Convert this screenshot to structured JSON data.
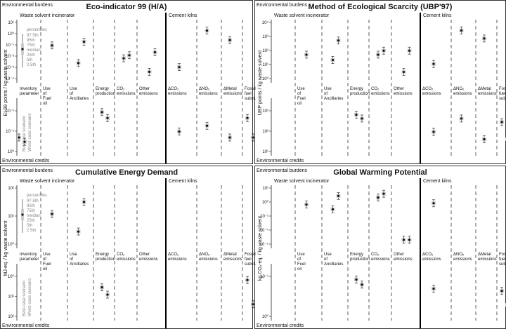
{
  "chart_data": [
    {
      "type": "scatter",
      "title": "Eco-indicator 99 (H/A)",
      "ylabel": "EI-99 points / kg waste solvent",
      "upper_ticks": [
        "10¹",
        "10⁰",
        "10⁻¹",
        "10⁻²",
        "10⁻³",
        "10⁻⁴"
      ],
      "lower_ticks": [
        "10⁻²",
        "10⁻¹",
        "10⁰"
      ],
      "upper_label": "Environmental burdens",
      "lower_label": "Environmental credits",
      "section_left": "Waste solvent incinerator",
      "section_right": "Cement kilns",
      "legend_title": "percentiles",
      "legend_items": [
        "97.5th",
        "95th",
        "75th",
        "median",
        "25th",
        "5th",
        "2.5th"
      ],
      "scenario_labels": [
        "Best-case scenario",
        "Worst-case scenario"
      ],
      "categories": [
        "Inventory parameter",
        "Use of Fuel oil",
        "Use of Ancillaries",
        "Energy production",
        "CO₂ emissions",
        "Other emissions",
        "ΔCO₂ emissions",
        "ΔNOₓ emissions",
        "ΔMetal emissions",
        "Fossil fuel subst."
      ],
      "burdens": {
        "best": [
          null,
          0.08,
          0.004,
          null,
          0.009,
          0.0009,
          0.002,
          1.0,
          0.2,
          null
        ],
        "worst": [
          null,
          null,
          0.15,
          null,
          0.015,
          0.025,
          null,
          null,
          null,
          null
        ]
      },
      "credits": {
        "best": [
          0.01,
          null,
          null,
          0.2,
          null,
          null,
          0.02,
          0.04,
          0.01,
          0.1
        ],
        "worst": [
          0.006,
          null,
          null,
          0.1,
          null,
          null,
          null,
          null,
          null,
          0.01
        ]
      }
    },
    {
      "type": "scatter",
      "title": "Method of Ecological Scarcity (UBP'97)",
      "ylabel": "UBP points / kg waste solvent",
      "upper_ticks": [
        "10⁴",
        "10³",
        "10²",
        "10¹",
        "10⁰"
      ],
      "lower_ticks": [
        "10³",
        "10²",
        "10¹"
      ],
      "upper_label": "Environmental burdens",
      "lower_label": "Environmental credits",
      "section_left": "Waste solvent incinerator",
      "section_right": "Cement kilns",
      "categories": [
        "Inventory parameter",
        "Use of Fuel oil",
        "Use of Ancillaries",
        "Energy production",
        "CO₂ emissions",
        "Other emissions",
        "ΔCO₂ emissions",
        "ΔNOₓ emissions",
        "ΔMetal emissions",
        "Fossil fuel subst."
      ],
      "burdens": {
        "best": [
          null,
          30,
          12,
          null,
          30,
          1.5,
          6,
          2000,
          500,
          null
        ],
        "worst": [
          null,
          null,
          350,
          null,
          60,
          60,
          null,
          null,
          null,
          null
        ]
      },
      "credits": {
        "best": [
          null,
          null,
          null,
          1000,
          null,
          null,
          200,
          700,
          100,
          500
        ],
        "worst": [
          null,
          null,
          null,
          700,
          null,
          null,
          null,
          null,
          null,
          100
        ]
      }
    },
    {
      "type": "scatter",
      "title": "Cumulative Energy Demand",
      "ylabel": "MJ-eq. / kg waste solvent",
      "upper_ticks": [
        "10²",
        "10¹",
        "10⁰"
      ],
      "lower_ticks": [
        "10⁰",
        "10¹",
        "10²"
      ],
      "upper_label": "Environmental burdens",
      "lower_label": "Environmental credits",
      "section_left": "Waste solvent incinerator",
      "section_right": "Cement kilns",
      "legend_title": "percentiles",
      "legend_items": [
        "97.5th",
        "95th",
        "75th",
        "median",
        "25th",
        "5th",
        "2.5th"
      ],
      "scenario_labels": [
        "Best-case scenario",
        "Worst-case scenario"
      ],
      "categories": [
        "Inventory parameter",
        "Use of Fuel oil",
        "Use of Ancillaries",
        "Energy production",
        "CO₂ emissions",
        "Other emissions",
        "ΔCO₂ emissions",
        "ΔNOₓ emissions",
        "ΔMetal emissions",
        "Fossil fuel subst."
      ],
      "burdens": {
        "best": [
          null,
          20,
          4,
          null,
          null,
          null,
          null,
          null,
          null,
          null
        ],
        "worst": [
          null,
          null,
          60,
          null,
          null,
          null,
          null,
          null,
          null,
          null
        ]
      },
      "credits": {
        "best": [
          null,
          null,
          null,
          50,
          null,
          null,
          null,
          null,
          null,
          100
        ],
        "worst": [
          null,
          null,
          null,
          25,
          null,
          null,
          null,
          null,
          null,
          10
        ]
      }
    },
    {
      "type": "scatter",
      "title": "Global Warming Potential",
      "ylabel": "kg CO₂-eq. / kg waste solvent",
      "upper_ticks": [
        "10¹",
        "10⁰",
        "10⁻¹",
        "10⁻⁴",
        "10⁻⁵"
      ],
      "lower_ticks": [
        "10⁻¹",
        "10⁰"
      ],
      "upper_label": "Environmental burdens",
      "lower_label": "Environmental credits",
      "section_left": "Waste solvent incinerator",
      "section_right": "Cement kilns",
      "categories": [
        "Inventory parameter",
        "Use of Fuel oil",
        "Use of Ancillaries",
        "Energy production",
        "CO₂ emissions",
        "Other emissions",
        "ΔCO₂ emissions",
        "ΔNOₓ emissions",
        "ΔMetal emissions",
        "Fossil fuel subst."
      ],
      "burdens": {
        "best": [
          null,
          0.25,
          0.07,
          null,
          1.6,
          2e-05,
          0.35,
          null,
          null,
          null
        ],
        "worst": [
          null,
          null,
          2.5,
          null,
          4.5,
          2e-05,
          null,
          null,
          null,
          null
        ]
      },
      "credits": {
        "best": [
          null,
          null,
          null,
          2.5,
          null,
          null,
          1.0,
          null,
          null,
          0.8
        ],
        "worst": [
          null,
          null,
          null,
          1.5,
          null,
          null,
          null,
          null,
          null,
          0.2
        ]
      }
    }
  ]
}
